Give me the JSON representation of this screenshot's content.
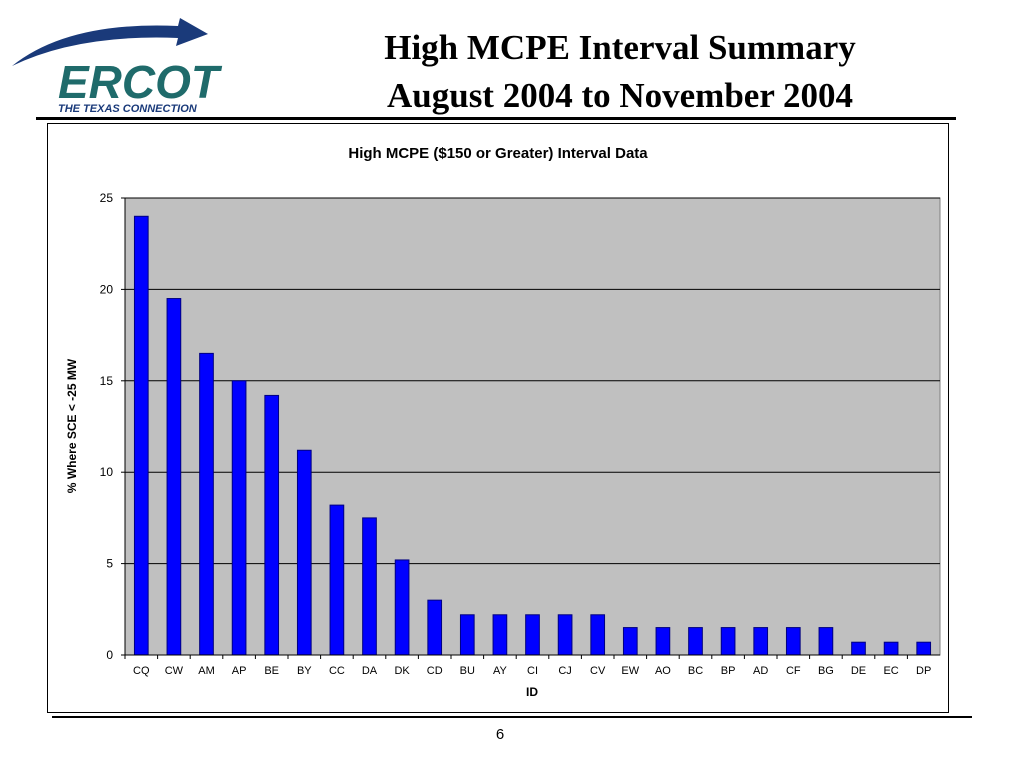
{
  "logo": {
    "wordmark": "ERCOT",
    "tagline": "THE TEXAS CONNECTION",
    "color_primary": "#1f6b6b",
    "color_arc": "#1a3a7a"
  },
  "slide": {
    "title_line1": "High MCPE Interval Summary",
    "title_line2": "August 2004 to November 2004",
    "page_number": "6"
  },
  "colors": {
    "bar_fill": "#0000ff",
    "bar_stroke": "#000080",
    "plot_bg": "#c0c0c0",
    "grid": "#000000"
  },
  "chart_data": {
    "type": "bar",
    "title": "High MCPE ($150 or Greater) Interval Data",
    "xlabel": "ID",
    "ylabel": "% Where SCE < -25 MW",
    "ylim": [
      0,
      25
    ],
    "yticks": [
      0,
      5,
      10,
      15,
      20,
      25
    ],
    "grid": true,
    "categories": [
      "CQ",
      "CW",
      "AM",
      "AP",
      "BE",
      "BY",
      "CC",
      "DA",
      "DK",
      "CD",
      "BU",
      "AY",
      "CI",
      "CJ",
      "CV",
      "EW",
      "AO",
      "BC",
      "BP",
      "AD",
      "CF",
      "BG",
      "DE",
      "EC",
      "DP"
    ],
    "values": [
      24.0,
      19.5,
      16.5,
      15.0,
      14.2,
      11.2,
      8.2,
      7.5,
      5.2,
      3.0,
      2.2,
      2.2,
      2.2,
      2.2,
      2.2,
      1.5,
      1.5,
      1.5,
      1.5,
      1.5,
      1.5,
      1.5,
      0.7,
      0.7,
      0.7
    ]
  }
}
